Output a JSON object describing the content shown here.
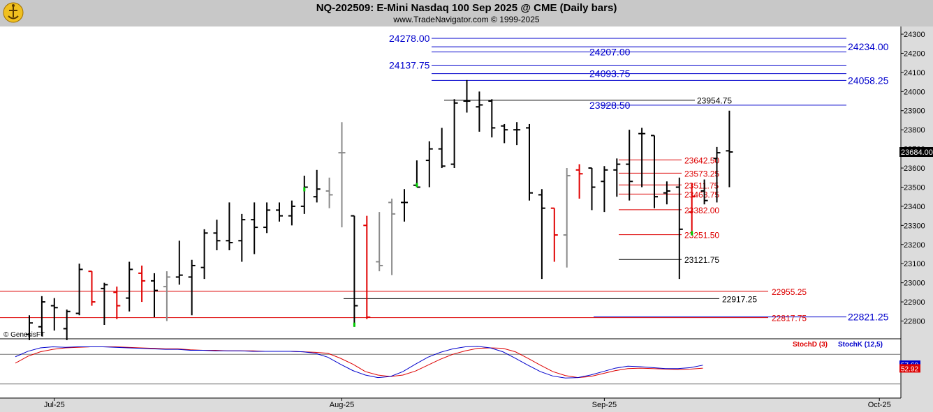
{
  "header": {
    "title": "NQ-202509:  E-Mini Nasdaq 100 Sep 2025 @ CME  (Daily bars)",
    "subtitle": "www.TradeNavigator.com © 1999-2025"
  },
  "watermark": "© GenesisFT",
  "colors": {
    "header_bg": "#c8c8c8",
    "bar_up": "#000000",
    "bar_down": "#e00000",
    "bar_gray": "#8a8a8a",
    "bar_green_tick": "#00cc00",
    "blue_level": "#0000cc",
    "red_level": "#dd0000",
    "black_level": "#000000",
    "stoch_d": "#dd0000",
    "stoch_k": "#0000cc"
  },
  "chart_data": [
    {
      "type": "ohlc",
      "title": "NQ-202509:  E-Mini Nasdaq 100 Sep 2025 @ CME  (Daily bars)",
      "y_axis_side": "right",
      "ylim": [
        22720,
        24330
      ],
      "y_ticks": [
        22800,
        22900,
        23000,
        23100,
        23200,
        23300,
        23400,
        23500,
        23600,
        23700,
        23800,
        23900,
        24000,
        24100,
        24200,
        24300
      ],
      "last_price": "23684.00",
      "x_ticks": [
        {
          "label": "Jul-25",
          "index": 2
        },
        {
          "label": "Aug-25",
          "index": 25
        },
        {
          "label": "Sep-25",
          "index": 46
        },
        {
          "label": "Oct-25",
          "index": 68
        }
      ],
      "bars": [
        {
          "o": 22730,
          "h": 22830,
          "l": 22700,
          "c": 22790,
          "color": "black"
        },
        {
          "o": 22770,
          "h": 22930,
          "l": 22720,
          "c": 22900,
          "color": "black"
        },
        {
          "o": 22880,
          "h": 22920,
          "l": 22750,
          "c": 22870,
          "color": "black"
        },
        {
          "o": 22760,
          "h": 22860,
          "l": 22700,
          "c": 22850,
          "color": "black"
        },
        {
          "o": 22840,
          "h": 23100,
          "l": 22830,
          "c": 23070,
          "color": "black"
        },
        {
          "o": 23060,
          "h": 23060,
          "l": 22880,
          "c": 22900,
          "color": "red"
        },
        {
          "o": 22970,
          "h": 23000,
          "l": 22780,
          "c": 22990,
          "color": "black"
        },
        {
          "o": 22950,
          "h": 22980,
          "l": 22810,
          "c": 22880,
          "color": "red"
        },
        {
          "o": 22920,
          "h": 23110,
          "l": 22850,
          "c": 23070,
          "color": "black"
        },
        {
          "o": 23050,
          "h": 23090,
          "l": 22900,
          "c": 23010,
          "color": "red"
        },
        {
          "o": 23010,
          "h": 23050,
          "l": 22820,
          "c": 22960,
          "color": "black"
        },
        {
          "o": 22980,
          "h": 23060,
          "l": 22800,
          "c": 23030,
          "color": "gray"
        },
        {
          "o": 23030,
          "h": 23220,
          "l": 22990,
          "c": 23040,
          "color": "black"
        },
        {
          "o": 23030,
          "h": 23120,
          "l": 22830,
          "c": 23090,
          "color": "black"
        },
        {
          "o": 23080,
          "h": 23280,
          "l": 23020,
          "c": 23260,
          "color": "black"
        },
        {
          "o": 23260,
          "h": 23330,
          "l": 23170,
          "c": 23220,
          "color": "black"
        },
        {
          "o": 23220,
          "h": 23420,
          "l": 23170,
          "c": 23210,
          "color": "black"
        },
        {
          "o": 23220,
          "h": 23360,
          "l": 23110,
          "c": 23330,
          "color": "black"
        },
        {
          "o": 23330,
          "h": 23420,
          "l": 23150,
          "c": 23290,
          "color": "black"
        },
        {
          "o": 23290,
          "h": 23420,
          "l": 23260,
          "c": 23380,
          "color": "black"
        },
        {
          "o": 23380,
          "h": 23420,
          "l": 23320,
          "c": 23350,
          "color": "black"
        },
        {
          "o": 23350,
          "h": 23430,
          "l": 23300,
          "c": 23400,
          "color": "black"
        },
        {
          "o": 23400,
          "h": 23560,
          "l": 23360,
          "c": 23500,
          "color": "black",
          "green_tick": true
        },
        {
          "o": 23450,
          "h": 23590,
          "l": 23420,
          "c": 23490,
          "color": "black"
        },
        {
          "o": 23480,
          "h": 23550,
          "l": 23390,
          "c": 23460,
          "color": "gray"
        },
        {
          "o": 23680,
          "h": 23840,
          "l": 23290,
          "c": 23680,
          "color": "gray"
        },
        {
          "o": 23350,
          "h": 23350,
          "l": 22770,
          "c": 22880,
          "color": "black",
          "green_tick": true
        },
        {
          "o": 23300,
          "h": 23350,
          "l": 22810,
          "c": 22820,
          "color": "red"
        },
        {
          "o": 23110,
          "h": 23370,
          "l": 23060,
          "c": 23090,
          "color": "gray"
        },
        {
          "o": 23420,
          "h": 23440,
          "l": 23040,
          "c": 23360,
          "color": "gray"
        },
        {
          "o": 23420,
          "h": 23490,
          "l": 23320,
          "c": 23420,
          "color": "black"
        },
        {
          "o": 23510,
          "h": 23640,
          "l": 23500,
          "c": 23500,
          "color": "black",
          "green_tick": true
        },
        {
          "o": 23640,
          "h": 23740,
          "l": 23500,
          "c": 23700,
          "color": "black"
        },
        {
          "o": 23700,
          "h": 23810,
          "l": 23600,
          "c": 23610,
          "color": "black"
        },
        {
          "o": 23620,
          "h": 23960,
          "l": 23600,
          "c": 23940,
          "color": "black"
        },
        {
          "o": 23950,
          "h": 24060,
          "l": 23890,
          "c": 23950,
          "color": "black"
        },
        {
          "o": 23920,
          "h": 24000,
          "l": 23790,
          "c": 23930,
          "color": "black"
        },
        {
          "o": 23950,
          "h": 23960,
          "l": 23760,
          "c": 23810,
          "color": "black"
        },
        {
          "o": 23820,
          "h": 23830,
          "l": 23730,
          "c": 23800,
          "color": "black"
        },
        {
          "o": 23800,
          "h": 23840,
          "l": 23720,
          "c": 23800,
          "color": "black"
        },
        {
          "o": 23810,
          "h": 23830,
          "l": 23430,
          "c": 23470,
          "color": "black"
        },
        {
          "o": 23460,
          "h": 23490,
          "l": 23020,
          "c": 23390,
          "color": "black"
        },
        {
          "o": 23390,
          "h": 23390,
          "l": 23110,
          "c": 23250,
          "color": "red"
        },
        {
          "o": 23250,
          "h": 23600,
          "l": 23080,
          "c": 23560,
          "color": "gray"
        },
        {
          "o": 23590,
          "h": 23620,
          "l": 23440,
          "c": 23570,
          "color": "red"
        },
        {
          "o": 23600,
          "h": 23600,
          "l": 23380,
          "c": 23500,
          "color": "black"
        },
        {
          "o": 23530,
          "h": 23610,
          "l": 23370,
          "c": 23590,
          "color": "black"
        },
        {
          "o": 23590,
          "h": 23650,
          "l": 23450,
          "c": 23620,
          "color": "black"
        },
        {
          "o": 23620,
          "h": 23800,
          "l": 23430,
          "c": 23530,
          "color": "black"
        },
        {
          "o": 23780,
          "h": 23810,
          "l": 23500,
          "c": 23780,
          "color": "black"
        },
        {
          "o": 23770,
          "h": 23770,
          "l": 23390,
          "c": 23450,
          "color": "black"
        },
        {
          "o": 23470,
          "h": 23530,
          "l": 23410,
          "c": 23480,
          "color": "black"
        },
        {
          "o": 23500,
          "h": 23550,
          "l": 23020,
          "c": 23280,
          "color": "black"
        },
        {
          "o": 23370,
          "h": 23520,
          "l": 23270,
          "c": 23450,
          "color": "red",
          "green_tick": true
        },
        {
          "o": 23480,
          "h": 23540,
          "l": 23410,
          "c": 23430,
          "color": "black"
        },
        {
          "o": 23650,
          "h": 23710,
          "l": 23420,
          "c": 23680,
          "color": "black"
        },
        {
          "o": 23690,
          "h": 23900,
          "l": 23500,
          "c": 23684,
          "color": "black"
        }
      ],
      "levels": [
        {
          "value": "24278.00",
          "color": "blue"
        },
        {
          "value": "24234.00",
          "color": "blue"
        },
        {
          "value": "24207.00",
          "color": "blue"
        },
        {
          "value": "24137.75",
          "color": "blue"
        },
        {
          "value": "24093.75",
          "color": "blue"
        },
        {
          "value": "24058.25",
          "color": "blue"
        },
        {
          "value": "23954.75",
          "color": "black"
        },
        {
          "value": "23928.50",
          "color": "blue"
        },
        {
          "value": "23642.50",
          "color": "red"
        },
        {
          "value": "23573.25",
          "color": "red"
        },
        {
          "value": "23511.75",
          "color": "red"
        },
        {
          "value": "23463.75",
          "color": "red"
        },
        {
          "value": "23382.00",
          "color": "red"
        },
        {
          "value": "23251.50",
          "color": "red"
        },
        {
          "value": "23121.75",
          "color": "black"
        },
        {
          "value": "22955.25",
          "color": "red"
        },
        {
          "value": "22917.25",
          "color": "black"
        },
        {
          "value": "22821.25",
          "color": "blue"
        },
        {
          "value": "22817.75",
          "color": "red"
        }
      ]
    },
    {
      "type": "line",
      "title": "",
      "legend": [
        "StochD (3)",
        "StochK (12,5)"
      ],
      "ylim": [
        0,
        100
      ],
      "current_values": {
        "StochK": "57.60",
        "StochD": "52.92"
      },
      "series": [
        {
          "name": "StochD (3)",
          "values": [
            62,
            76,
            85,
            90,
            93,
            94,
            95,
            95,
            95,
            94,
            93,
            92,
            91,
            91,
            89,
            88,
            88,
            87,
            87,
            87,
            86,
            86,
            86,
            85,
            84,
            82,
            72,
            60,
            45,
            38,
            35,
            38,
            46,
            58,
            70,
            80,
            87,
            92,
            93,
            92,
            85,
            72,
            58,
            45,
            37,
            33,
            35,
            41,
            47,
            51,
            52,
            51,
            50,
            49,
            50,
            52
          ]
        },
        {
          "name": "StochK (12,5)",
          "values": [
            75,
            86,
            93,
            95,
            94,
            95,
            95,
            95,
            94,
            93,
            92,
            91,
            90,
            90,
            88,
            88,
            87,
            87,
            87,
            86,
            86,
            86,
            86,
            85,
            82,
            74,
            60,
            47,
            38,
            33,
            35,
            45,
            60,
            74,
            84,
            91,
            95,
            96,
            93,
            85,
            72,
            58,
            45,
            36,
            32,
            33,
            38,
            45,
            52,
            56,
            55,
            53,
            51,
            51,
            53,
            58
          ]
        }
      ]
    }
  ]
}
